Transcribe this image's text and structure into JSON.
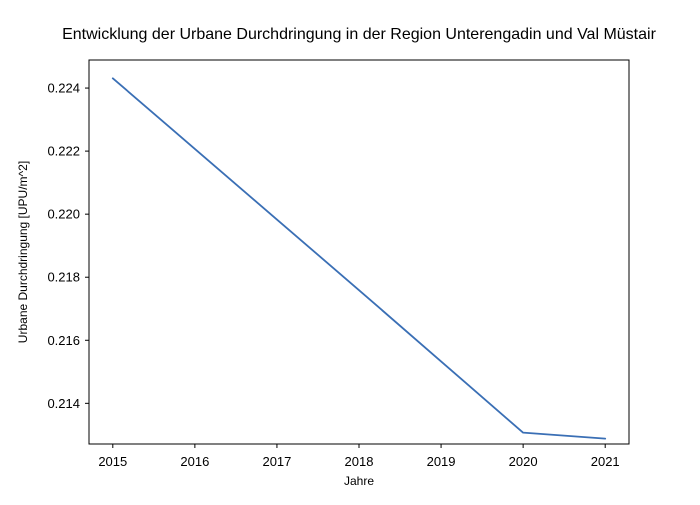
{
  "chart_data": {
    "type": "line",
    "title": "Entwicklung der Urbane Durchdringung in der Region Unterengadin und Val Müstair",
    "xlabel": "Jahre",
    "ylabel": "Urbane Durchdringung [UPU/m^2]",
    "x": [
      2015,
      2016,
      2017,
      2018,
      2019,
      2020,
      2021
    ],
    "series": [
      {
        "values": [
          0.22431,
          0.22207,
          0.21983,
          0.21759,
          0.21533,
          0.21307,
          0.21288
        ]
      }
    ],
    "xlim": [
      2014.71,
      2021.29
    ],
    "ylim": [
      0.21271,
      0.22489
    ],
    "xticks": [
      2015,
      2016,
      2017,
      2018,
      2019,
      2020,
      2021
    ],
    "xtick_labels": [
      "2015",
      "2016",
      "2017",
      "2018",
      "2019",
      "2020",
      "2021"
    ],
    "yticks": [
      0.214,
      0.216,
      0.218,
      0.22,
      0.222,
      0.224
    ],
    "ytick_labels": [
      "0.214",
      "0.216",
      "0.218",
      "0.220",
      "0.222",
      "0.224"
    ],
    "grid": false,
    "colors": {
      "line": "#3a6fb5",
      "axes": "#000000"
    }
  }
}
